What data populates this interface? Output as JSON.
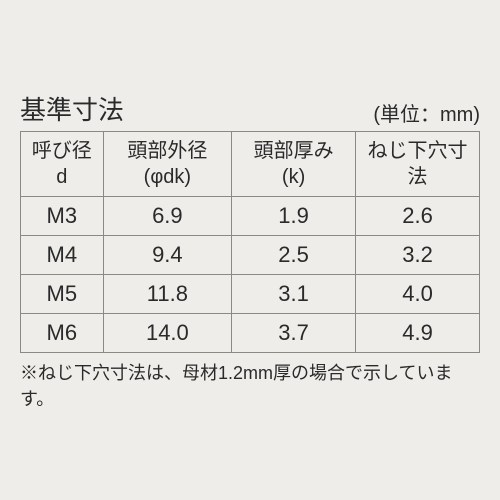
{
  "title": "基準寸法",
  "unit": "(単位：mm)",
  "columns": [
    {
      "line1": "呼び径",
      "line2": "d"
    },
    {
      "line1": "頭部外径",
      "line2": "(φdk)"
    },
    {
      "line1": "頭部厚み",
      "line2": "(k)"
    },
    {
      "line1": "ねじ下穴寸法",
      "line2": ""
    }
  ],
  "rows": [
    [
      "M3",
      "6.9",
      "1.9",
      "2.6"
    ],
    [
      "M4",
      "9.4",
      "2.5",
      "3.2"
    ],
    [
      "M5",
      "11.8",
      "3.1",
      "4.0"
    ],
    [
      "M6",
      "14.0",
      "3.7",
      "4.9"
    ]
  ],
  "footnote": "※ねじ下穴寸法は、母材1.2mm厚の場合で示しています。",
  "styles": {
    "background_color": "#eeede9",
    "text_color": "#2a2a2a",
    "border_color": "#8a8a85",
    "title_fontsize": 26,
    "unit_fontsize": 20,
    "header_fontsize": 20,
    "cell_fontsize": 22,
    "footnote_fontsize": 18,
    "col_widths": [
      "18%",
      "28%",
      "27%",
      "27%"
    ]
  }
}
